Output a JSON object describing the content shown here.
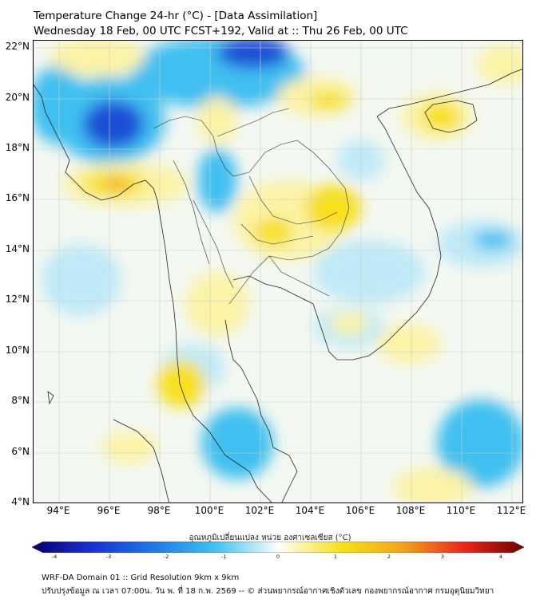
{
  "header": {
    "title": "Temperature Change 24-hr (°C) - [Data Assimilation]",
    "subtitle": "Wednesday 18 Feb, 00 UTC FCST+192, Valid at :: Thu 26 Feb, 00 UTC"
  },
  "map": {
    "lat_labels": [
      "22°N",
      "20°N",
      "18°N",
      "16°N",
      "14°N",
      "12°N",
      "10°N",
      "8°N",
      "6°N",
      "4°N"
    ],
    "lon_labels": [
      "94°E",
      "96°E",
      "98°E",
      "100°E",
      "102°E",
      "104°E",
      "106°E",
      "108°E",
      "110°E",
      "112°E"
    ],
    "colors": {
      "cold_strong": "#1a4fd6",
      "cold": "#3fc0f0",
      "cold_light": "#bfe9f7",
      "neutral": "#f4f8f2",
      "warm_light": "#fbf3a6",
      "warm": "#f7e01c",
      "warm_strong": "#f3a51c"
    }
  },
  "colorbar": {
    "label": "อุณหภูมิเปลี่ยนแปลง หน่วย องศาเซลเซียส (°C)",
    "ticks": [
      "-4",
      "-3",
      "-2",
      "-1",
      "0",
      "1",
      "2",
      "3",
      "4"
    ]
  },
  "footer": {
    "line1": "WRF-DA Domain 01 :: Grid Resolution 9km x 9km",
    "line2": "ปรับปรุงข้อมูล ณ เวลา 07:00น. วัน พ. ที่ 18 ก.พ. 2569 -- © ส่วนพยากรณ์อากาศเชิงตัวเลข กองพยากรณ์อากาศ กรมอุตุนิยมวิทยา"
  }
}
